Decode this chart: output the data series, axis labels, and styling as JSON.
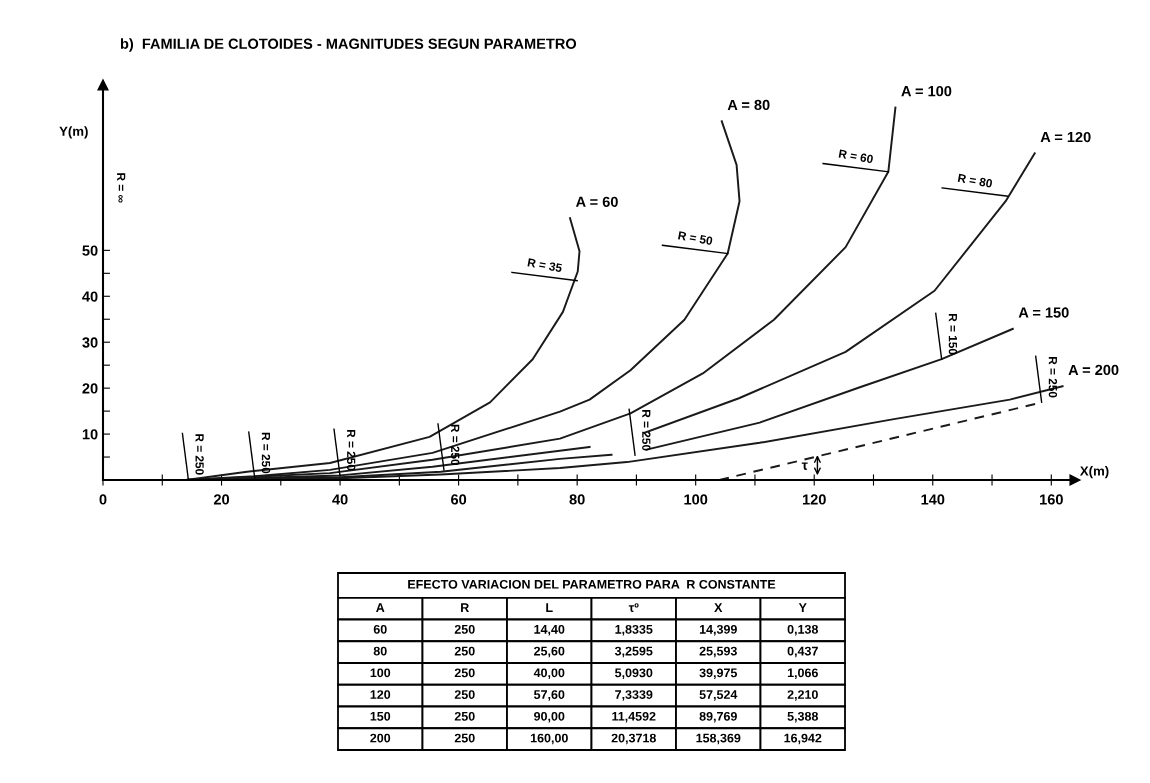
{
  "chart_data": {
    "type": "line",
    "title": "b)  FAMILIA DE CLOTOIDES - MAGNITUDES SEGUN PARAMETRO",
    "xlabel": "X(m)",
    "ylabel": "Y(m)",
    "xlim": [
      0,
      164
    ],
    "ylim": [
      0,
      86
    ],
    "xticks": [
      0,
      {
        "value": 10,
        "label": null
      },
      20,
      {
        "value": 30,
        "label": null
      },
      40,
      {
        "value": 50,
        "label": null
      },
      60,
      {
        "value": 70,
        "label": null
      },
      80,
      {
        "value": 90,
        "label": null
      },
      100,
      {
        "value": 110,
        "label": null
      },
      120,
      {
        "value": 130,
        "label": null
      },
      140,
      {
        "value": 150,
        "label": null
      },
      160
    ],
    "yticks": [
      {
        "value": 5,
        "label": null
      },
      10,
      {
        "value": 15,
        "label": null
      },
      20,
      {
        "value": 25,
        "label": null
      },
      30,
      {
        "value": 35,
        "label": null
      },
      40,
      {
        "value": 45,
        "label": null
      },
      50
    ],
    "grid": false,
    "legend": false,
    "marker": "none",
    "line_style": "solid",
    "series": [
      {
        "name": "A = 60",
        "color": "#1a1a1a",
        "x": [
          14,
          24.3,
          38.3,
          55.1,
          65.3,
          72.5,
          77.6,
          80.1,
          80.4,
          78.8
        ],
        "values": [
          0,
          1.8,
          3.7,
          9.4,
          16.9,
          26.3,
          36.6,
          45.4,
          49.8,
          57
        ]
      },
      {
        "name": "A = 80",
        "color": "#1a1a1a",
        "x": [
          14,
          25.6,
          38.3,
          55.6,
          77.1,
          82.1,
          89,
          98.1,
          105.4,
          107.4,
          106.9,
          104.4
        ],
        "values": [
          0,
          0.8,
          2.2,
          5.9,
          14.9,
          17.5,
          23.9,
          34.9,
          49.3,
          60.7,
          68.6,
          78.1
        ]
      },
      {
        "name": "A = 100",
        "color": "#1a1a1a",
        "x": [
          14,
          38.3,
          55.6,
          77.1,
          89,
          101.2,
          113.2,
          125.3,
          132.5,
          133.7
        ],
        "values": [
          0,
          1.5,
          4.4,
          9,
          14.5,
          23.2,
          34.9,
          50.7,
          67.1,
          81.1
        ]
      },
      {
        "name": "A = 120",
        "color": "#1a1a1a",
        "x": [
          14,
          40,
          55.6,
          82.1,
          86,
          91.4,
          107.3,
          125.3,
          140.3,
          152.3,
          157.2
        ],
        "values": [
          0,
          1,
          2.9,
          7.2,
          null,
          10.3,
          17.8,
          27.9,
          41.2,
          60.7,
          71.1
        ]
      },
      {
        "name": "A = 150",
        "color": "#1a1a1a",
        "x": [
          14,
          40,
          57,
          77.1,
          85.8,
          88.7,
          91.7,
          110.8,
          127.7,
          141.5,
          153.5
        ],
        "values": [
          0,
          0.6,
          1.8,
          4.6,
          5.5,
          null,
          6.6,
          12.5,
          20.2,
          26.3,
          32.9
        ]
      },
      {
        "name": "A = 200",
        "color": "#1a1a1a",
        "x": [
          14,
          40,
          57,
          77.1,
          88.4,
          110.8,
          133.2,
          153,
          161.9
        ],
        "values": [
          0,
          0.4,
          1.2,
          2.6,
          3.9,
          8.1,
          13.2,
          17.5,
          20.4
        ]
      },
      {
        "color": "#1a1a1a",
        "line_style": "dashed",
        "x": [
          104,
          158.4
        ],
        "values": [
          0,
          16.9
        ]
      }
    ],
    "annotations": [
      {
        "text": "R = 250",
        "x": 14.399,
        "y": 0.138
      },
      {
        "text": "R = 250",
        "x": 25.593,
        "y": 0.437
      },
      {
        "text": "R = 250",
        "x": 39.975,
        "y": 1.066
      },
      {
        "text": "R = 250",
        "x": 57.524,
        "y": 2.21
      },
      {
        "text": "R = 250",
        "x": 89.769,
        "y": 5.388
      },
      {
        "text": "R = 250",
        "x": 158.369,
        "y": 16.942
      },
      {
        "text": "R = 150",
        "x": 141.5,
        "y": 26.3
      },
      {
        "text": "R = 35",
        "x": 80,
        "y": 43.4
      },
      {
        "text": "R = 50",
        "x": 105.4,
        "y": 49.3
      },
      {
        "text": "R = 60",
        "x": 132.5,
        "y": 67.1
      },
      {
        "text": "R = 80",
        "x": 152.6,
        "y": 61.8
      },
      "τ",
      "R = ∞",
      "EFECTO VARIACION DEL PARAMETRO PARA  R CONSTANTE",
      "A",
      "R",
      "L",
      "τº",
      "X",
      "Y",
      "60",
      "250",
      "14,40",
      "1,8335",
      "14,399",
      "0,138",
      "80",
      "250",
      "25,60",
      "3,2595",
      "25,593",
      "0,437",
      "100",
      "250",
      "40,00",
      "5,0930",
      "39,975",
      "1,066",
      "120",
      "250",
      "57,60",
      "7,3339",
      "57,524",
      "2,210",
      "150",
      "250",
      "90,00",
      "11,4592",
      "89,769",
      "5,388",
      "200",
      "250",
      "160,00",
      "20,3718",
      "158,369",
      "16,942"
    ]
  }
}
